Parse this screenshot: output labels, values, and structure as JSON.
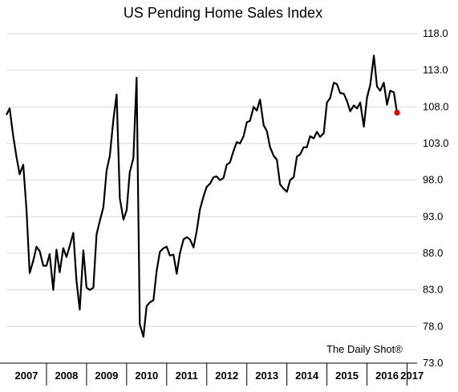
{
  "chart_data": {
    "type": "line",
    "title": "US Pending Home Sales Index",
    "source_note": "The Daily Shot®",
    "xlabel": "",
    "ylabel": "",
    "ylim": [
      73.0,
      118.0
    ],
    "yticks": [
      "73.0",
      "78.0",
      "83.0",
      "88.0",
      "93.0",
      "98.0",
      "103.0",
      "108.0",
      "113.0",
      "118.0"
    ],
    "xlim": [
      2007.0,
      2017.25
    ],
    "xtick_labels": [
      "2007",
      "2008",
      "2009",
      "2010",
      "2011",
      "2012",
      "2013",
      "2014",
      "2015",
      "2016",
      "2017"
    ],
    "grid": "horizontal",
    "colors": {
      "line": "#000000",
      "last_point": "#e00000",
      "grid": "#d9d9d9"
    },
    "series": [
      {
        "x": [
          2007.0,
          2007.08,
          2007.17,
          2007.25,
          2007.33,
          2007.42,
          2007.5,
          2007.58,
          2007.67,
          2007.75,
          2007.83,
          2007.92,
          2008.0,
          2008.08,
          2008.17,
          2008.25,
          2008.33,
          2008.42,
          2008.5,
          2008.58,
          2008.67,
          2008.75,
          2008.83,
          2008.92,
          2009.0,
          2009.08,
          2009.17,
          2009.25,
          2009.33,
          2009.42,
          2009.5,
          2009.58,
          2009.67,
          2009.75,
          2009.83,
          2009.92,
          2010.0,
          2010.08,
          2010.17,
          2010.25,
          2010.33,
          2010.42,
          2010.5,
          2010.58,
          2010.67,
          2010.75,
          2010.83,
          2010.92,
          2011.0,
          2011.08,
          2011.17,
          2011.25,
          2011.33,
          2011.42,
          2011.5,
          2011.58,
          2011.67,
          2011.75,
          2011.83,
          2011.92,
          2012.0,
          2012.08,
          2012.17,
          2012.25,
          2012.33,
          2012.42,
          2012.5,
          2012.58,
          2012.67,
          2012.75,
          2012.83,
          2012.92,
          2013.0,
          2013.08,
          2013.17,
          2013.25,
          2013.33,
          2013.42,
          2013.5,
          2013.58,
          2013.67,
          2013.75,
          2013.83,
          2013.92,
          2014.0,
          2014.08,
          2014.17,
          2014.25,
          2014.33,
          2014.42,
          2014.5,
          2014.58,
          2014.67,
          2014.75,
          2014.83,
          2014.92,
          2015.0,
          2015.08,
          2015.17,
          2015.25,
          2015.33,
          2015.42,
          2015.5,
          2015.58,
          2015.67,
          2015.75,
          2015.83,
          2015.92,
          2016.0,
          2016.08,
          2016.17,
          2016.25,
          2016.33,
          2016.42,
          2016.5,
          2016.58,
          2016.67,
          2016.75
        ],
        "values": [
          106.9,
          107.8,
          104.0,
          101.2,
          98.8,
          100.1,
          94.0,
          85.3,
          87.0,
          88.9,
          88.3,
          86.3,
          86.3,
          87.9,
          83.0,
          88.5,
          85.4,
          88.7,
          87.5,
          89.0,
          90.8,
          84.2,
          80.3,
          88.4,
          83.3,
          83.0,
          83.3,
          90.6,
          92.4,
          94.3,
          99.3,
          101.3,
          106.3,
          109.7,
          95.5,
          92.6,
          93.9,
          99.1,
          101.0,
          112.0,
          78.3,
          76.6,
          80.8,
          81.3,
          81.6,
          85.6,
          88.2,
          88.7,
          88.9,
          87.7,
          87.8,
          85.2,
          88.0,
          89.9,
          90.2,
          89.9,
          88.8,
          91.1,
          94.0,
          95.8,
          97.1,
          97.5,
          98.4,
          98.5,
          98.0,
          98.3,
          100.1,
          100.4,
          102.0,
          103.2,
          103.0,
          104.0,
          105.9,
          106.1,
          108.0,
          107.5,
          109.0,
          105.5,
          104.7,
          102.5,
          101.3,
          100.8,
          97.4,
          96.8,
          96.4,
          98.0,
          98.4,
          101.2,
          101.5,
          102.5,
          102.5,
          104.0,
          103.7,
          104.6,
          103.9,
          104.4,
          108.6,
          109.2,
          111.3,
          111.1,
          109.9,
          109.8,
          108.8,
          107.4,
          108.2,
          107.8,
          108.6,
          105.3,
          109.3,
          111.0,
          115.0,
          110.8,
          110.2,
          111.3,
          108.3,
          110.2,
          110.0,
          107.2
        ]
      }
    ]
  }
}
